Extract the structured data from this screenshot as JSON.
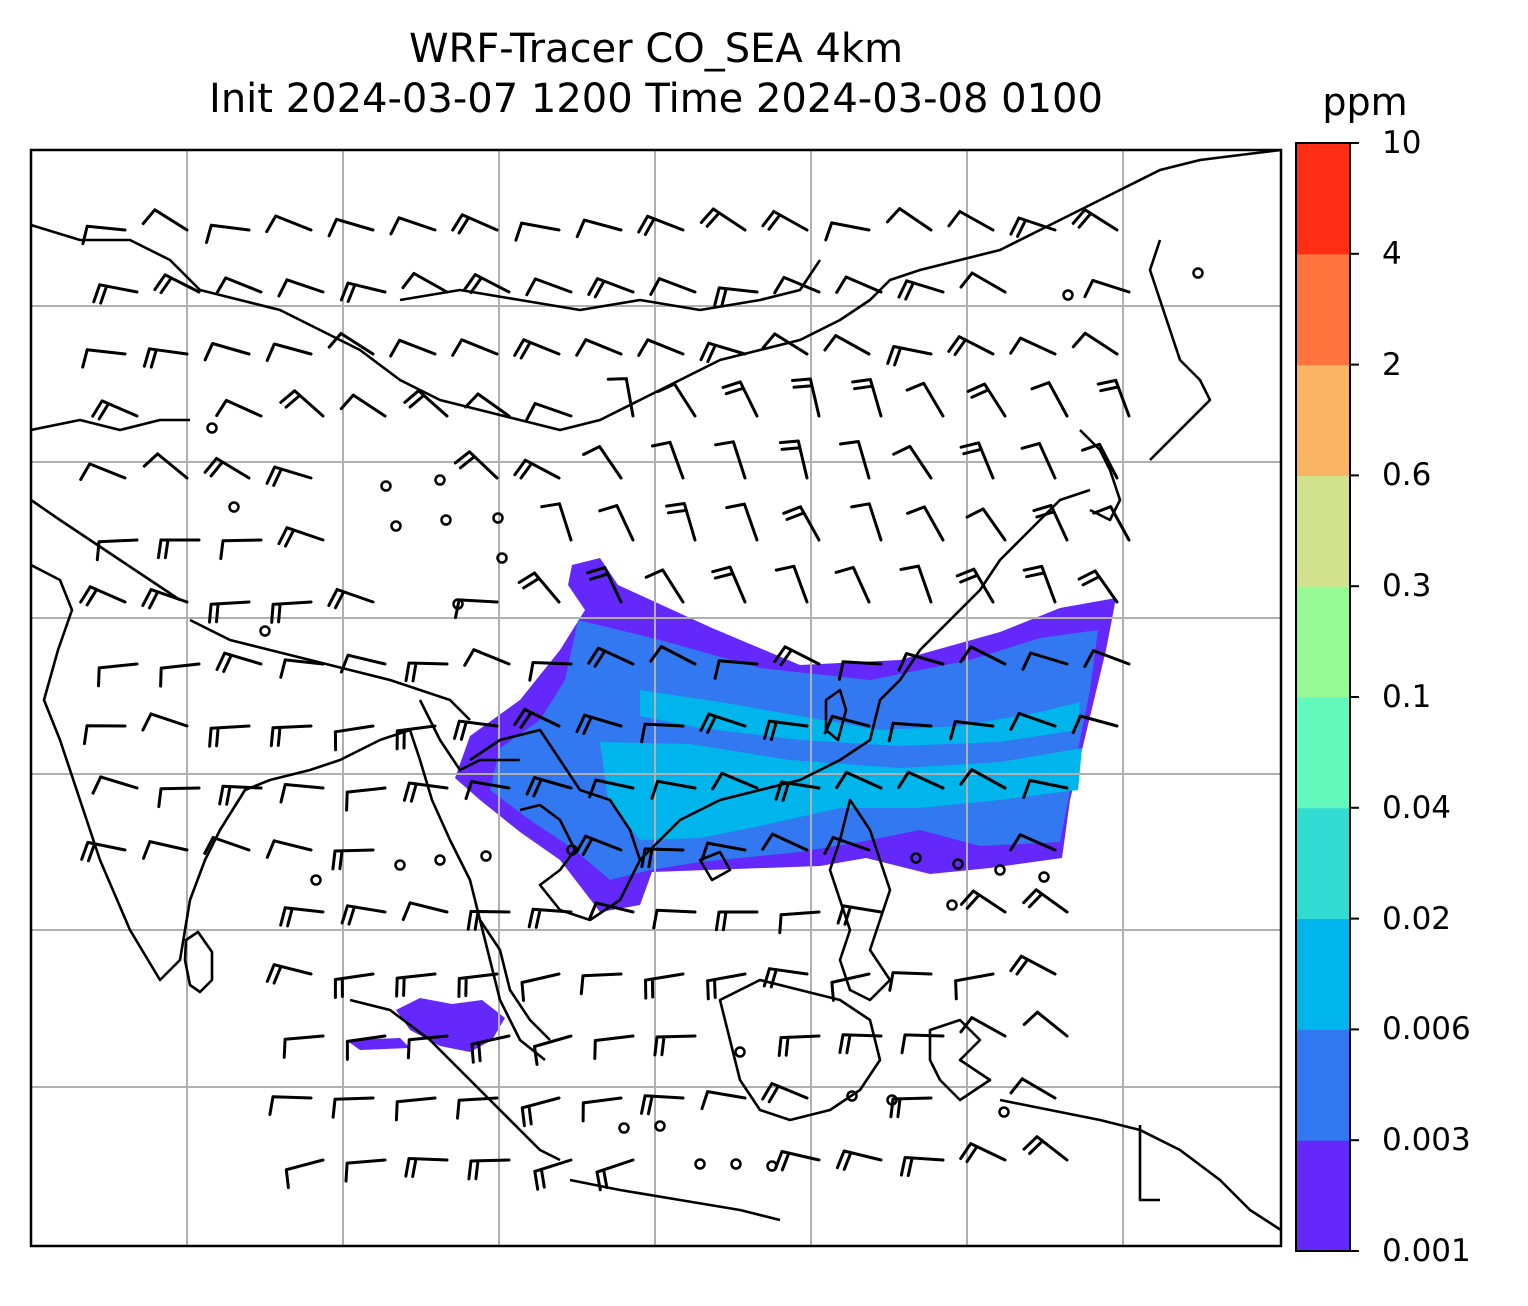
{
  "title": {
    "line1": "WRF-Tracer CO_SEA 4km",
    "line2": "Init 2024-03-07 1200 Time 2024-03-08 0100"
  },
  "colorbar": {
    "unit": "ppm",
    "levels": [
      "0.001",
      "0.003",
      "0.006",
      "0.02",
      "0.04",
      "0.1",
      "0.3",
      "0.6",
      "2",
      "4",
      "10"
    ],
    "colors": [
      "#6428fa",
      "#3278f0",
      "#00b4ec",
      "#32dcd2",
      "#64fabe",
      "#96fa96",
      "#d2e18c",
      "#fab464",
      "#ff733c",
      "#ff2d14"
    ]
  },
  "map": {
    "coastline_color": "#000000",
    "grid_color": "#b0b0b0",
    "barb_color": "#000000",
    "plume_colors": {
      "low": "#6428fa",
      "mid": "#3278f0",
      "high": "#00b4ec"
    }
  }
}
